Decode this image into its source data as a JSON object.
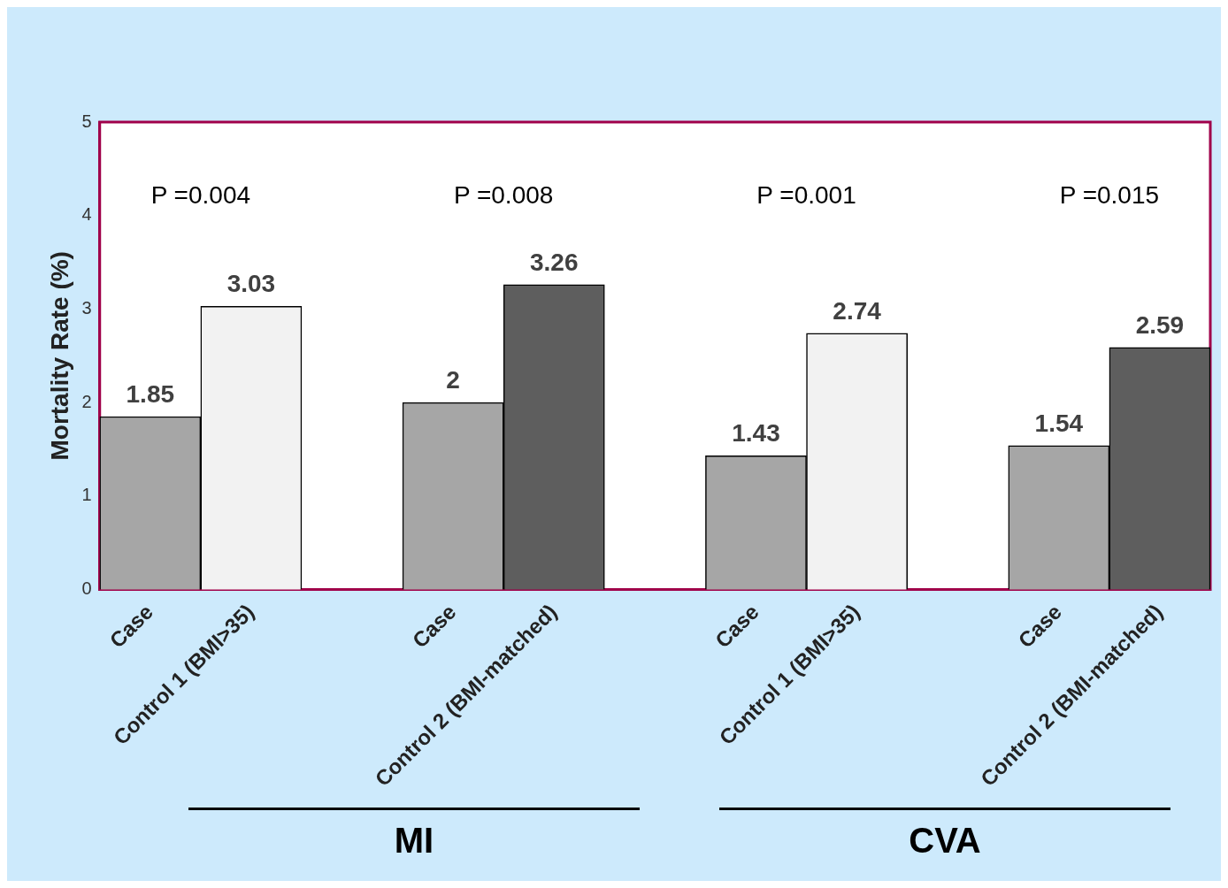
{
  "chart_data": {
    "type": "bar",
    "ylabel": "Mortality Rate (%)",
    "categories": [
      "Case",
      "Control 1 (BMI>35)",
      null,
      "Case",
      "Control 2 (BMI-matched)",
      null,
      "Case",
      "Control 1 (BMI>35)",
      null,
      "Case",
      "Control 2 (BMI-matched)"
    ],
    "values": [
      1.85,
      3.03,
      null,
      2,
      3.26,
      null,
      1.43,
      2.74,
      null,
      1.54,
      2.59
    ],
    "colors": [
      "#a6a6a6",
      "#f2f2f2",
      "#ffffff",
      "#a6a6a6",
      "#5e5e5e",
      "#ffffff",
      "#a6a6a6",
      "#f2f2f2",
      "#ffffff",
      "#a6a6a6",
      "#5e5e5e"
    ],
    "ylim": [
      0,
      5
    ],
    "yticks": [
      0,
      1,
      2,
      3,
      4,
      5
    ],
    "grid": false,
    "legend": false,
    "data_labels": true,
    "annotations": [
      "P =0.004",
      "P =0.008",
      "P =0.001",
      "P =0.015",
      "MI",
      "CVA"
    ]
  }
}
